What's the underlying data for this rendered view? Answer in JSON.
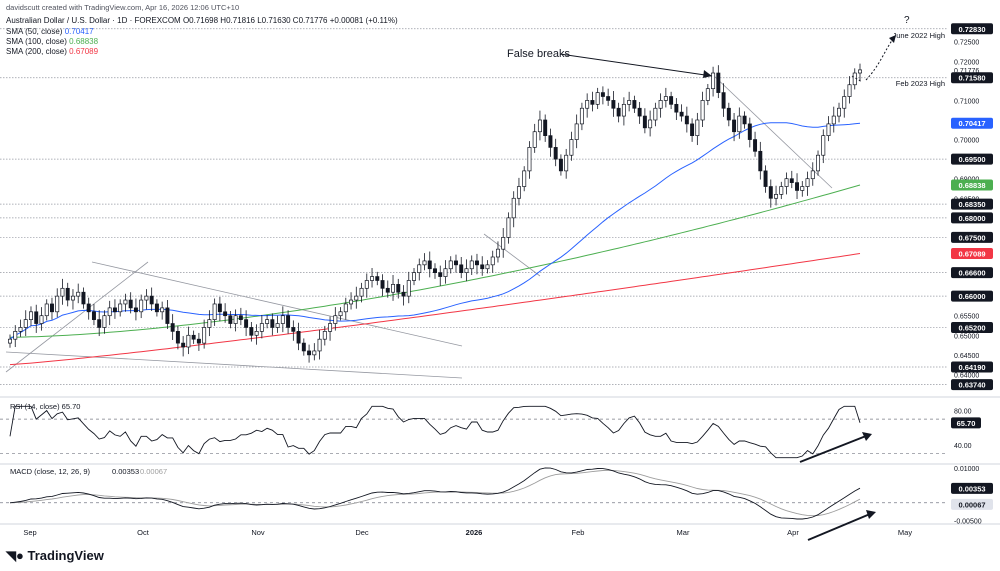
{
  "header": {
    "credit": "davidscutt created with TradingView.com, Apr 16, 2026 12:06 UTC+10",
    "symbol_line": "Australian Dollar / U.S. Dollar · 1D · FOREXCOM",
    "ohlc": "O0.71698 H0.71816 L0.71630 C0.71776 +0.00081 (+0.11%)",
    "sma50_label": "SMA (50, close)",
    "sma50_value": "0.70417",
    "sma100_label": "SMA (100, close)",
    "sma100_value": "0.68838",
    "sma200_label": "SMA (200, close)",
    "sma200_value": "0.67089"
  },
  "brand": "TradingView",
  "colors": {
    "up": "#ffffff",
    "down": "#131722",
    "sma50": "#2962ff",
    "sma100": "#4caf50",
    "sma200": "#f23645",
    "rsi": "#131722",
    "macd": "#131722",
    "signal": "#9e9e9e"
  },
  "chart_data": [
    {
      "type": "candlestick",
      "title": "Australian Dollar / U.S. Dollar · 1D · FOREXCOM",
      "ylim": [
        0.635,
        0.7285
      ],
      "x_tick_labels": [
        "Sep",
        "Oct",
        "Nov",
        "Dec",
        "2026",
        "Feb",
        "Mar",
        "Apr",
        "May"
      ],
      "y_tick_labels": [
        "0.72800",
        "0.72500",
        "0.72000",
        "0.71776",
        "0.71000",
        "0.70500",
        "0.70000",
        "0.69000",
        "0.68500",
        "0.65500",
        "0.65000",
        "0.64500",
        "0.64000"
      ],
      "price_levels": [
        {
          "label": "0.72830",
          "value": 0.7283,
          "highlight": false
        },
        {
          "label": "0.71580",
          "value": 0.7158,
          "highlight": false
        },
        {
          "label": "0.70417",
          "value": 0.70417,
          "highlight": "sma50"
        },
        {
          "label": "0.69500",
          "value": 0.695,
          "highlight": false
        },
        {
          "label": "0.68838",
          "value": 0.68838,
          "highlight": "sma100"
        },
        {
          "label": "0.68350",
          "value": 0.6835,
          "highlight": false
        },
        {
          "label": "0.68000",
          "value": 0.68,
          "highlight": false
        },
        {
          "label": "0.67500",
          "value": 0.675,
          "highlight": false
        },
        {
          "label": "0.67089",
          "value": 0.67089,
          "highlight": "sma200"
        },
        {
          "label": "0.66600",
          "value": 0.666,
          "highlight": false
        },
        {
          "label": "0.66000",
          "value": 0.66,
          "highlight": false
        },
        {
          "label": "0.65200",
          "value": 0.652,
          "highlight": false
        },
        {
          "label": "0.64190",
          "value": 0.6419,
          "highlight": false
        },
        {
          "label": "0.63740",
          "value": 0.6374,
          "highlight": false
        }
      ],
      "annotations": [
        "False breaks",
        "June 2022 High",
        "Feb 2023 High",
        "?"
      ],
      "close": [
        0.649,
        0.651,
        0.652,
        0.654,
        0.656,
        0.653,
        0.655,
        0.658,
        0.656,
        0.66,
        0.662,
        0.659,
        0.66,
        0.661,
        0.658,
        0.656,
        0.654,
        0.652,
        0.655,
        0.657,
        0.656,
        0.658,
        0.659,
        0.657,
        0.656,
        0.659,
        0.66,
        0.658,
        0.656,
        0.657,
        0.653,
        0.651,
        0.648,
        0.647,
        0.65,
        0.649,
        0.648,
        0.652,
        0.654,
        0.658,
        0.656,
        0.655,
        0.653,
        0.655,
        0.654,
        0.652,
        0.65,
        0.651,
        0.653,
        0.654,
        0.652,
        0.653,
        0.655,
        0.652,
        0.651,
        0.648,
        0.646,
        0.645,
        0.646,
        0.649,
        0.651,
        0.653,
        0.655,
        0.656,
        0.658,
        0.659,
        0.66,
        0.662,
        0.664,
        0.665,
        0.664,
        0.662,
        0.661,
        0.663,
        0.661,
        0.66,
        0.664,
        0.666,
        0.668,
        0.669,
        0.667,
        0.666,
        0.665,
        0.667,
        0.669,
        0.668,
        0.666,
        0.667,
        0.669,
        0.668,
        0.667,
        0.668,
        0.67,
        0.672,
        0.675,
        0.68,
        0.685,
        0.688,
        0.692,
        0.698,
        0.702,
        0.705,
        0.701,
        0.698,
        0.695,
        0.692,
        0.696,
        0.7,
        0.704,
        0.708,
        0.71,
        0.709,
        0.712,
        0.711,
        0.71,
        0.708,
        0.706,
        0.709,
        0.71,
        0.708,
        0.706,
        0.703,
        0.705,
        0.708,
        0.71,
        0.711,
        0.709,
        0.707,
        0.706,
        0.704,
        0.701,
        0.705,
        0.71,
        0.713,
        0.717,
        0.712,
        0.708,
        0.705,
        0.702,
        0.706,
        0.704,
        0.7,
        0.697,
        0.692,
        0.688,
        0.685,
        0.686,
        0.688,
        0.69,
        0.689,
        0.687,
        0.688,
        0.69,
        0.692,
        0.696,
        0.701,
        0.704,
        0.706,
        0.708,
        0.711,
        0.714,
        0.717,
        0.7178
      ],
      "series": [
        {
          "name": "SMA (50, close)",
          "last": 0.70417
        },
        {
          "name": "SMA (100, close)",
          "last": 0.68838
        },
        {
          "name": "SMA (200, close)",
          "last": 0.67089
        }
      ]
    },
    {
      "type": "line",
      "title": "RSI (14, close)",
      "last_value": "65.70",
      "ylim": [
        20,
        90
      ],
      "y_tick_labels": [
        "80.00",
        "40.00"
      ],
      "bands": [
        70,
        30
      ]
    },
    {
      "type": "line",
      "title": "MACD (close, 12, 26, 9)",
      "macd_value": "0.00353",
      "signal_value": "0.00067",
      "ylim": [
        -0.0055,
        0.0105
      ],
      "y_tick_labels": [
        "0.01000",
        "0.00500",
        "-0.00500"
      ]
    }
  ]
}
